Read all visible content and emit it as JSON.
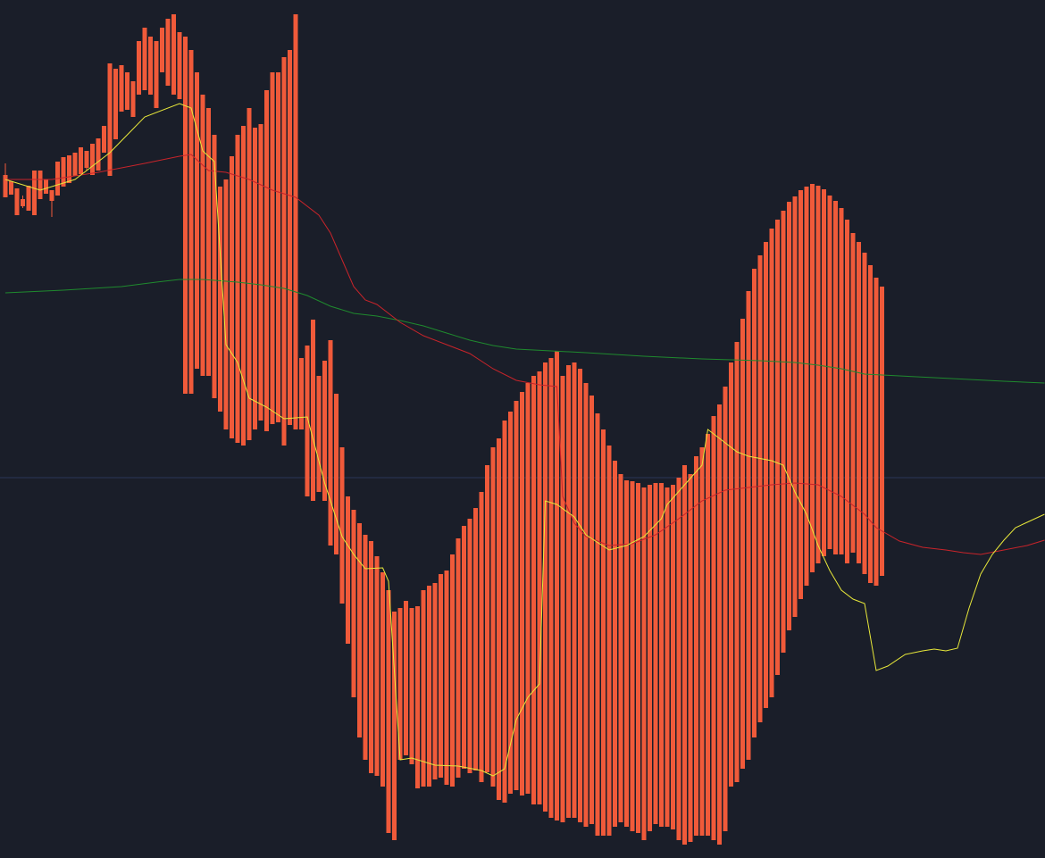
{
  "colors": {
    "background": "#1a1e29",
    "candle_up": "#2196f3",
    "candle_down": "#f05a3a",
    "ma_fast": "#e8e83a",
    "ma_mid": "#c8242a",
    "ma_slow": "#1f8a2e",
    "price_line": "#2a3558"
  },
  "chart_data": {
    "type": "candlestick",
    "xlabel": "",
    "ylabel": "",
    "ylim": [
      0,
      961
    ],
    "grid": false,
    "price_line": 426,
    "candles": [
      [
        0,
        765,
        755,
        778,
        740
      ],
      [
        1,
        758,
        747,
        756,
        743
      ],
      [
        2,
        750,
        725,
        733,
        720
      ],
      [
        3,
        738,
        728,
        742,
        730
      ],
      [
        4,
        753,
        730,
        740,
        725
      ],
      [
        5,
        770,
        740,
        755,
        720
      ],
      [
        6,
        770,
        745,
        760,
        738
      ],
      [
        7,
        760,
        748,
        757,
        744
      ],
      [
        8,
        748,
        718,
        742,
        736
      ],
      [
        9,
        780,
        744,
        765,
        742
      ],
      [
        10,
        785,
        756,
        778,
        752
      ],
      [
        11,
        787,
        760,
        772,
        756
      ],
      [
        12,
        790,
        770,
        782,
        764
      ],
      [
        13,
        796,
        778,
        790,
        766
      ],
      [
        14,
        792,
        770,
        786,
        773
      ],
      [
        15,
        800,
        770,
        790,
        765
      ],
      [
        16,
        806,
        779,
        795,
        770
      ],
      [
        17,
        820,
        800,
        812,
        790
      ],
      [
        18,
        890,
        766,
        830,
        764
      ],
      [
        19,
        884,
        820,
        870,
        805
      ],
      [
        20,
        888,
        848,
        880,
        836
      ],
      [
        21,
        880,
        852,
        864,
        838
      ],
      [
        22,
        870,
        840,
        850,
        830
      ],
      [
        23,
        915,
        865,
        908,
        855
      ],
      [
        24,
        930,
        870,
        895,
        860
      ],
      [
        25,
        920,
        862,
        878,
        855
      ],
      [
        26,
        915,
        865,
        905,
        840
      ],
      [
        27,
        930,
        896,
        918,
        880
      ],
      [
        28,
        940,
        898,
        930,
        865
      ],
      [
        29,
        945,
        860,
        920,
        855
      ],
      [
        30,
        925,
        870,
        905,
        850
      ],
      [
        31,
        920,
        540,
        535,
        520
      ],
      [
        32,
        905,
        580,
        560,
        520
      ],
      [
        33,
        880,
        592,
        574,
        548
      ],
      [
        34,
        855,
        583,
        570,
        540
      ],
      [
        35,
        840,
        572,
        565,
        540
      ],
      [
        36,
        810,
        565,
        555,
        515
      ],
      [
        37,
        752,
        525,
        505,
        500
      ],
      [
        38,
        760,
        513,
        495,
        480
      ],
      [
        39,
        786,
        503,
        489,
        470
      ],
      [
        40,
        810,
        490,
        480,
        465
      ],
      [
        41,
        820,
        503,
        490,
        462
      ],
      [
        42,
        840,
        496,
        488,
        468
      ],
      [
        43,
        818,
        510,
        492,
        480
      ],
      [
        44,
        822,
        508,
        498,
        490
      ],
      [
        45,
        860,
        501,
        496,
        478
      ],
      [
        46,
        880,
        510,
        500,
        486
      ],
      [
        47,
        880,
        505,
        495,
        488
      ],
      [
        48,
        897,
        484,
        488,
        462
      ],
      [
        49,
        905,
        508,
        490,
        485
      ],
      [
        50,
        945,
        488,
        480,
        480
      ],
      [
        51,
        560,
        490,
        495,
        480
      ],
      [
        52,
        574,
        412,
        408,
        405
      ],
      [
        53,
        603,
        408,
        405,
        400
      ],
      [
        54,
        540,
        436,
        425,
        410
      ],
      [
        55,
        557,
        420,
        412,
        400
      ],
      [
        56,
        580,
        366,
        360,
        350
      ],
      [
        57,
        520,
        380,
        368,
        340
      ],
      [
        58,
        460,
        320,
        298,
        285
      ],
      [
        59,
        405,
        270,
        260,
        240
      ],
      [
        60,
        390,
        215,
        194,
        180
      ],
      [
        61,
        375,
        155,
        148,
        135
      ],
      [
        62,
        362,
        120,
        112,
        110
      ],
      [
        63,
        355,
        110,
        102,
        95
      ],
      [
        64,
        338,
        108,
        96,
        92
      ],
      [
        65,
        320,
        96,
        90,
        80
      ],
      [
        66,
        300,
        35,
        30,
        28
      ],
      [
        67,
        276,
        30,
        28,
        20
      ],
      [
        68,
        280,
        135,
        118,
        110
      ],
      [
        69,
        288,
        145,
        122,
        115
      ],
      [
        70,
        280,
        135,
        110,
        105
      ],
      [
        71,
        282,
        108,
        85,
        78
      ],
      [
        72,
        300,
        98,
        90,
        80
      ],
      [
        73,
        305,
        98,
        85,
        80
      ],
      [
        74,
        308,
        104,
        94,
        88
      ],
      [
        75,
        318,
        102,
        96,
        90
      ],
      [
        76,
        322,
        108,
        92,
        82
      ],
      [
        77,
        340,
        98,
        86,
        80
      ],
      [
        78,
        358,
        120,
        104,
        90
      ],
      [
        79,
        372,
        130,
        110,
        100
      ],
      [
        80,
        380,
        115,
        103,
        95
      ],
      [
        81,
        392,
        112,
        104,
        98
      ],
      [
        82,
        410,
        98,
        90,
        85
      ],
      [
        83,
        440,
        115,
        104,
        96
      ],
      [
        84,
        460,
        92,
        84,
        80
      ],
      [
        85,
        470,
        80,
        72,
        65
      ],
      [
        86,
        490,
        78,
        70,
        62
      ],
      [
        87,
        500,
        90,
        80,
        72
      ],
      [
        88,
        512,
        92,
        82,
        76
      ],
      [
        89,
        522,
        84,
        78,
        70
      ],
      [
        90,
        532,
        86,
        80,
        72
      ],
      [
        91,
        540,
        74,
        66,
        60
      ],
      [
        92,
        545,
        95,
        70,
        60
      ],
      [
        93,
        555,
        62,
        55,
        52
      ],
      [
        94,
        560,
        65,
        48,
        45
      ],
      [
        95,
        568,
        65,
        45,
        42
      ],
      [
        96,
        540,
        70,
        48,
        40
      ],
      [
        97,
        552,
        60,
        50,
        45
      ],
      [
        98,
        555,
        56,
        52,
        45
      ],
      [
        99,
        548,
        50,
        45,
        40
      ],
      [
        100,
        532,
        48,
        42,
        35
      ],
      [
        101,
        518,
        50,
        40,
        38
      ],
      [
        102,
        498,
        32,
        28,
        25
      ],
      [
        103,
        480,
        50,
        32,
        25
      ],
      [
        104,
        462,
        40,
        30,
        25
      ],
      [
        105,
        445,
        66,
        45,
        35
      ],
      [
        106,
        430,
        55,
        48,
        40
      ],
      [
        107,
        423,
        70,
        40,
        35
      ],
      [
        108,
        422,
        72,
        38,
        30
      ],
      [
        109,
        420,
        72,
        35,
        28
      ],
      [
        110,
        415,
        60,
        25,
        20
      ],
      [
        111,
        418,
        60,
        38,
        30
      ],
      [
        112,
        420,
        58,
        42,
        38
      ],
      [
        113,
        420,
        62,
        40,
        35
      ],
      [
        114,
        415,
        78,
        42,
        35
      ],
      [
        115,
        418,
        78,
        38,
        32
      ],
      [
        116,
        426,
        46,
        25,
        20
      ],
      [
        117,
        440,
        45,
        20,
        15
      ],
      [
        118,
        430,
        55,
        22,
        18
      ],
      [
        119,
        450,
        58,
        28,
        25
      ],
      [
        120,
        460,
        60,
        30,
        25
      ],
      [
        121,
        475,
        56,
        30,
        25
      ],
      [
        122,
        495,
        42,
        25,
        20
      ],
      [
        123,
        508,
        38,
        20,
        15
      ],
      [
        124,
        528,
        50,
        35,
        30
      ],
      [
        125,
        555,
        95,
        85,
        80
      ],
      [
        126,
        578,
        98,
        90,
        85
      ],
      [
        127,
        604,
        128,
        110,
        100
      ],
      [
        128,
        635,
        145,
        125,
        110
      ],
      [
        129,
        660,
        170,
        140,
        135
      ],
      [
        130,
        675,
        190,
        165,
        152
      ],
      [
        131,
        690,
        210,
        180,
        168
      ],
      [
        132,
        705,
        228,
        195,
        180
      ],
      [
        133,
        715,
        240,
        215,
        205
      ],
      [
        134,
        725,
        255,
        242,
        230
      ],
      [
        135,
        735,
        282,
        265,
        255
      ],
      [
        136,
        741,
        300,
        285,
        270
      ],
      [
        137,
        748,
        315,
        300,
        290
      ],
      [
        138,
        752,
        326,
        316,
        305
      ],
      [
        139,
        755,
        340,
        330,
        320
      ],
      [
        140,
        753,
        350,
        336,
        330
      ],
      [
        141,
        749,
        358,
        345,
        338
      ],
      [
        142,
        742,
        362,
        352,
        346
      ],
      [
        143,
        736,
        356,
        346,
        340
      ],
      [
        144,
        728,
        354,
        348,
        340
      ],
      [
        145,
        715,
        356,
        342,
        330
      ],
      [
        146,
        700,
        360,
        350,
        342
      ],
      [
        147,
        690,
        352,
        342,
        330
      ],
      [
        148,
        678,
        340,
        330,
        318
      ],
      [
        149,
        664,
        332,
        320,
        308
      ],
      [
        150,
        650,
        330,
        316,
        305
      ],
      [
        151,
        640,
        334,
        324,
        316
      ]
    ],
    "ma_fast": [
      [
        0,
        760
      ],
      [
        6,
        748
      ],
      [
        12,
        760
      ],
      [
        18,
        790
      ],
      [
        24,
        830
      ],
      [
        30,
        845
      ],
      [
        32,
        840
      ],
      [
        34,
        792
      ],
      [
        36,
        780
      ],
      [
        38,
        575
      ],
      [
        40,
        555
      ],
      [
        42,
        515
      ],
      [
        45,
        505
      ],
      [
        48,
        492
      ],
      [
        52,
        494
      ],
      [
        55,
        420
      ],
      [
        58,
        360
      ],
      [
        60,
        340
      ],
      [
        62,
        324
      ],
      [
        65,
        325
      ],
      [
        66,
        310
      ],
      [
        68,
        110
      ],
      [
        70,
        112
      ],
      [
        74,
        104
      ],
      [
        78,
        103
      ],
      [
        82,
        98
      ],
      [
        84,
        92
      ],
      [
        86,
        100
      ],
      [
        88,
        155
      ],
      [
        90,
        180
      ],
      [
        92,
        195
      ],
      [
        93,
        400
      ],
      [
        95,
        396
      ],
      [
        98,
        382
      ],
      [
        100,
        362
      ],
      [
        104,
        345
      ],
      [
        107,
        350
      ],
      [
        110,
        360
      ],
      [
        113,
        380
      ],
      [
        114,
        396
      ],
      [
        117,
        418
      ],
      [
        120,
        440
      ],
      [
        121,
        480
      ],
      [
        123,
        470
      ],
      [
        126,
        455
      ],
      [
        128,
        450
      ],
      [
        132,
        445
      ],
      [
        134,
        440
      ],
      [
        136,
        410
      ],
      [
        138,
        385
      ],
      [
        140,
        350
      ],
      [
        142,
        322
      ],
      [
        144,
        300
      ],
      [
        146,
        290
      ],
      [
        148,
        285
      ],
      [
        150,
        210
      ],
      [
        152,
        215
      ],
      [
        155,
        228
      ],
      [
        158,
        232
      ],
      [
        160,
        234
      ],
      [
        162,
        232
      ],
      [
        164,
        235
      ],
      [
        166,
        280
      ],
      [
        168,
        318
      ],
      [
        170,
        340
      ],
      [
        172,
        356
      ],
      [
        174,
        370
      ],
      [
        176,
        376
      ],
      [
        178,
        382
      ],
      [
        179,
        385
      ]
    ],
    "ma_mid": [
      [
        0,
        760
      ],
      [
        8,
        760
      ],
      [
        16,
        768
      ],
      [
        24,
        778
      ],
      [
        30,
        786
      ],
      [
        32,
        788
      ],
      [
        35,
        770
      ],
      [
        38,
        768
      ],
      [
        42,
        760
      ],
      [
        46,
        748
      ],
      [
        50,
        740
      ],
      [
        54,
        720
      ],
      [
        56,
        700
      ],
      [
        58,
        670
      ],
      [
        60,
        640
      ],
      [
        62,
        625
      ],
      [
        64,
        620
      ],
      [
        68,
        600
      ],
      [
        72,
        585
      ],
      [
        76,
        575
      ],
      [
        80,
        565
      ],
      [
        84,
        548
      ],
      [
        88,
        535
      ],
      [
        92,
        530
      ],
      [
        95,
        528
      ],
      [
        96,
        405
      ],
      [
        98,
        375
      ],
      [
        100,
        360
      ],
      [
        104,
        350
      ],
      [
        108,
        352
      ],
      [
        112,
        362
      ],
      [
        116,
        380
      ],
      [
        120,
        400
      ],
      [
        124,
        412
      ],
      [
        128,
        415
      ],
      [
        132,
        418
      ],
      [
        136,
        420
      ],
      [
        140,
        418
      ],
      [
        144,
        405
      ],
      [
        148,
        385
      ],
      [
        150,
        370
      ],
      [
        154,
        355
      ],
      [
        158,
        348
      ],
      [
        162,
        345
      ],
      [
        165,
        342
      ],
      [
        168,
        340
      ],
      [
        172,
        345
      ],
      [
        176,
        350
      ],
      [
        179,
        356
      ]
    ],
    "ma_slow": [
      [
        0,
        633
      ],
      [
        10,
        636
      ],
      [
        20,
        640
      ],
      [
        26,
        645
      ],
      [
        30,
        648
      ],
      [
        34,
        648
      ],
      [
        40,
        645
      ],
      [
        44,
        642
      ],
      [
        48,
        638
      ],
      [
        52,
        630
      ],
      [
        56,
        618
      ],
      [
        60,
        610
      ],
      [
        64,
        607
      ],
      [
        68,
        602
      ],
      [
        72,
        596
      ],
      [
        76,
        588
      ],
      [
        80,
        580
      ],
      [
        84,
        574
      ],
      [
        88,
        570
      ],
      [
        94,
        568
      ],
      [
        100,
        566
      ],
      [
        110,
        562
      ],
      [
        120,
        559
      ],
      [
        130,
        557
      ],
      [
        136,
        555
      ],
      [
        140,
        552
      ],
      [
        144,
        548
      ],
      [
        148,
        542
      ],
      [
        154,
        540
      ],
      [
        160,
        538
      ],
      [
        166,
        536
      ],
      [
        172,
        534
      ],
      [
        179,
        532
      ]
    ]
  }
}
